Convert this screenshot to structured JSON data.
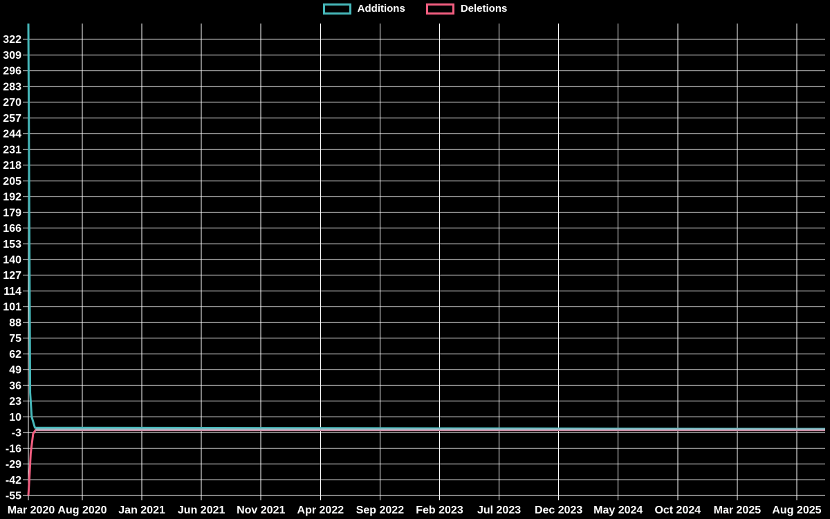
{
  "page": {
    "background_color": "#000000",
    "text_color": "#ffffff"
  },
  "legend": {
    "items": [
      {
        "label": "Additions",
        "color": "#46b8ba"
      },
      {
        "label": "Deletions",
        "color": "#f25e80"
      }
    ]
  },
  "chart_data": {
    "type": "line",
    "title": "",
    "legend_position": "top-center",
    "grid": {
      "show": true,
      "color": "#ffffff",
      "width": 1
    },
    "line_width": 3,
    "x_axis": {
      "label": "",
      "unit": "months since start (mid-Mar 2020)",
      "tick_labels": [
        "Mar 2020",
        "Aug 2020",
        "Jan 2021",
        "Jun 2021",
        "Nov 2021",
        "Apr 2022",
        "Sep 2022",
        "Feb 2023",
        "Jul 2023",
        "Dec 2023",
        "May 2024",
        "Oct 2024",
        "Mar 2025",
        "Aug 2025"
      ],
      "range_months": [
        0,
        66.9
      ]
    },
    "y_axis": {
      "label": "",
      "min": -55,
      "max": 335,
      "step": 13,
      "tick_labels": [
        "322",
        "309",
        "296",
        "283",
        "270",
        "257",
        "244",
        "231",
        "218",
        "205",
        "192",
        "179",
        "166",
        "153",
        "140",
        "127",
        "114",
        "101",
        "88",
        "75",
        "62",
        "49",
        "36",
        "23",
        "10",
        "-3",
        "-16",
        "-29",
        "-42",
        "-55"
      ],
      "tick_values": [
        322,
        309,
        296,
        283,
        270,
        257,
        244,
        231,
        218,
        205,
        192,
        179,
        166,
        153,
        140,
        127,
        114,
        101,
        88,
        75,
        62,
        49,
        36,
        23,
        10,
        -3,
        -16,
        -29,
        -42,
        -55
      ]
    },
    "series": [
      {
        "name": "Additions",
        "color": "#46b8ba",
        "points": [
          [
            0,
            335
          ],
          [
            0.15,
            30
          ],
          [
            0.28,
            10
          ],
          [
            0.55,
            1
          ],
          [
            66.9,
            0
          ]
        ]
      },
      {
        "name": "Deletions",
        "color": "#f25e80",
        "points": [
          [
            0,
            -55
          ],
          [
            0.08,
            -42
          ],
          [
            0.2,
            -20
          ],
          [
            0.4,
            -4
          ],
          [
            0.6,
            -1
          ],
          [
            66.9,
            -1
          ]
        ]
      }
    ],
    "overlap_line": {
      "color": "#a4b8c4",
      "from_month": 0.6,
      "to_month": 66.9,
      "value": -0.5
    }
  }
}
